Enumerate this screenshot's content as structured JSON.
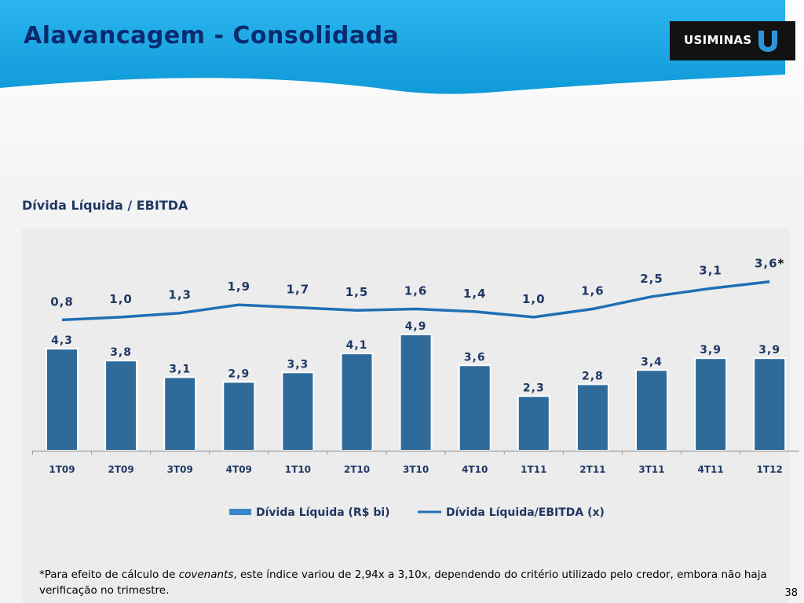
{
  "header": {
    "title": "Alavancagem - Consolidada",
    "logo_text": "USIMINAS",
    "colors": {
      "band": "#1ea7e6",
      "title": "#0a2a6e",
      "logo_bg": "#121212",
      "logo_mark": "#2b95d9"
    }
  },
  "subtitle": "Dívida Líquida / EBITDA",
  "chart_data": {
    "type": "bar",
    "categories": [
      "1T09",
      "2T09",
      "3T09",
      "4T09",
      "1T10",
      "2T10",
      "3T10",
      "4T10",
      "1T11",
      "2T11",
      "3T11",
      "4T11",
      "1T12"
    ],
    "series": [
      {
        "name": "Dívida Líquida (R$ bi)",
        "type": "bar",
        "values": [
          4.3,
          3.8,
          3.1,
          2.9,
          3.3,
          4.1,
          4.9,
          3.6,
          2.3,
          2.8,
          3.4,
          3.9,
          3.9
        ],
        "labels": [
          "4,3",
          "3,8",
          "3,1",
          "2,9",
          "3,3",
          "4,1",
          "4,9",
          "3,6",
          "2,3",
          "2,8",
          "3,4",
          "3,9",
          "3,9"
        ],
        "color": "#2e6b9b"
      },
      {
        "name": "Dívida Líquida/EBITDA (x)",
        "type": "line",
        "values": [
          0.8,
          1.0,
          1.3,
          1.9,
          1.7,
          1.5,
          1.6,
          1.4,
          1.0,
          1.6,
          2.5,
          3.1,
          3.6
        ],
        "labels": [
          "0,8",
          "1,0",
          "1,3",
          "1,9",
          "1,7",
          "1,5",
          "1,6",
          "1,4",
          "1,0",
          "1,6",
          "2,5",
          "3,1",
          "3,6"
        ],
        "color": "#1f6fb5"
      }
    ],
    "last_label_marker": "*",
    "legend_position": "bottom",
    "grid": false
  },
  "footnote": {
    "prefix": "*Para efeito de cálculo de ",
    "italic": "covenants",
    "suffix": ", este índice variou de 2,94x a 3,10x, dependendo do critério utilizado pelo credor, embora não haja verificação no trimestre."
  },
  "page_number": "38"
}
